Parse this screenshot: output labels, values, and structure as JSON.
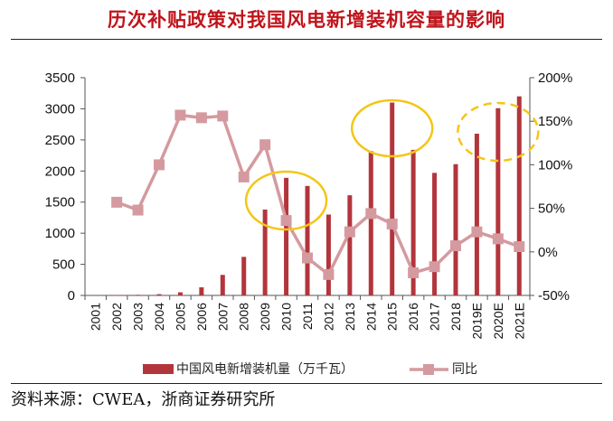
{
  "title": "历次补贴政策对我国风电新增装机容量的影响",
  "source": "资料来源：CWEA，浙商证券研究所",
  "colors": {
    "bar": "#b3353c",
    "line": "#d49a9f",
    "title": "#c0141b",
    "highlight": "#f5c518",
    "axis": "#555555"
  },
  "chart_data": {
    "type": "bar",
    "categories": [
      "2001",
      "2002",
      "2003",
      "2004",
      "2005",
      "2006",
      "2007",
      "2008",
      "2009",
      "2010",
      "2011",
      "2012",
      "2013",
      "2014",
      "2015",
      "2016",
      "2017",
      "2018",
      "2019E",
      "2020E",
      "2021E"
    ],
    "series": [
      {
        "name": "中国风电新增装机量（万千瓦）",
        "type": "bar",
        "axis": "left",
        "values": [
          4,
          7,
          10,
          20,
          50,
          130,
          330,
          620,
          1380,
          1890,
          1760,
          1300,
          1610,
          2320,
          3100,
          2340,
          1970,
          2110,
          2600,
          3010,
          3200
        ]
      },
      {
        "name": "同比",
        "type": "line",
        "axis": "right",
        "unit": "%",
        "values": [
          null,
          57,
          48,
          100,
          157,
          154,
          156,
          86,
          123,
          36,
          -7,
          -26,
          23,
          44,
          32,
          -24,
          -17,
          7,
          23,
          15,
          6
        ]
      }
    ],
    "y_left": {
      "ylim": [
        0,
        3500
      ],
      "ticks": [
        "0",
        "500",
        "1000",
        "1500",
        "2000",
        "2500",
        "3000",
        "3500"
      ]
    },
    "y_right": {
      "ylim": [
        -50,
        200
      ],
      "ticks": [
        "-50%",
        "0%",
        "50%",
        "100%",
        "150%",
        "200%"
      ]
    },
    "legend_position": "bottom",
    "highlights": [
      {
        "style": "solid",
        "x_range": [
          "2009",
          "2011"
        ]
      },
      {
        "style": "solid",
        "x_range": [
          "2014",
          "2016"
        ]
      },
      {
        "style": "dashed",
        "x_range": [
          "2019E",
          "2021E"
        ]
      }
    ]
  }
}
